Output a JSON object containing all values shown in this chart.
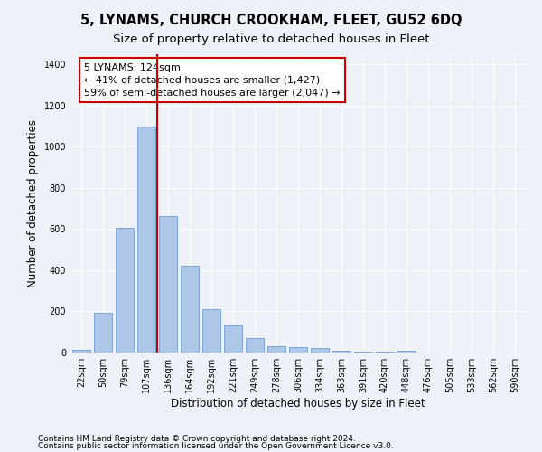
{
  "title": "5, LYNAMS, CHURCH CROOKHAM, FLEET, GU52 6DQ",
  "subtitle": "Size of property relative to detached houses in Fleet",
  "xlabel": "Distribution of detached houses by size in Fleet",
  "ylabel": "Number of detached properties",
  "categories": [
    "22sqm",
    "50sqm",
    "79sqm",
    "107sqm",
    "136sqm",
    "164sqm",
    "192sqm",
    "221sqm",
    "249sqm",
    "278sqm",
    "306sqm",
    "334sqm",
    "363sqm",
    "391sqm",
    "420sqm",
    "448sqm",
    "476sqm",
    "505sqm",
    "533sqm",
    "562sqm",
    "590sqm"
  ],
  "values": [
    15,
    192,
    605,
    1100,
    665,
    420,
    210,
    130,
    70,
    30,
    27,
    22,
    10,
    5,
    3,
    8,
    0,
    0,
    0,
    0,
    0
  ],
  "bar_color": "#aec6e8",
  "bar_edge_color": "#5b8fc9",
  "background_color": "#eef2f8",
  "grid_color": "#ffffff",
  "vline_color": "#cc0000",
  "annotation_text": "5 LYNAMS: 124sqm\n← 41% of detached houses are smaller (1,427)\n59% of semi-detached houses are larger (2,047) →",
  "annotation_box_color": "#ffffff",
  "annotation_box_edge": "#cc0000",
  "footnote1": "Contains HM Land Registry data © Crown copyright and database right 2024.",
  "footnote2": "Contains public sector information licensed under the Open Government Licence v3.0.",
  "ylim": [
    0,
    1450
  ],
  "yticks": [
    0,
    200,
    400,
    600,
    800,
    1000,
    1200,
    1400
  ],
  "title_fontsize": 10.5,
  "subtitle_fontsize": 9.5,
  "axis_label_fontsize": 8.5,
  "tick_fontsize": 7,
  "annotation_fontsize": 8,
  "footnote_fontsize": 6.5
}
